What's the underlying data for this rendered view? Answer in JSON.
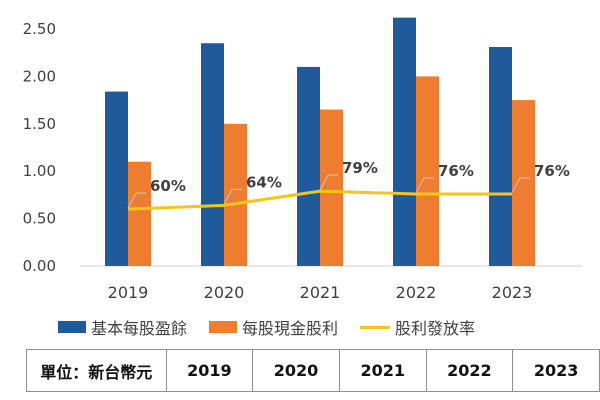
{
  "chart_data": {
    "type": "bar",
    "categories": [
      "2019",
      "2020",
      "2021",
      "2022",
      "2023"
    ],
    "series": [
      {
        "name": "基本每股盈餘",
        "type": "bar",
        "color": "#1f5b9a",
        "values": [
          1.84,
          2.35,
          2.1,
          2.62,
          2.31
        ]
      },
      {
        "name": "每股現金股利",
        "type": "bar",
        "color": "#ed7d31",
        "values": [
          1.1,
          1.5,
          1.65,
          2.0,
          1.75
        ]
      },
      {
        "name": "股利發放率",
        "type": "line",
        "color": "#f5c518",
        "values": [
          0.6,
          0.64,
          0.79,
          0.76,
          0.76
        ],
        "labels": [
          "60%",
          "64%",
          "79%",
          "76%",
          "76%"
        ]
      }
    ],
    "ylim": [
      0,
      2.5
    ],
    "yticks": [
      "0.00",
      "0.50",
      "1.00",
      "1.50",
      "2.00",
      "2.50"
    ],
    "grid": false,
    "legend_position": "bottom"
  },
  "table": {
    "unit_label": "單位：新台幣元",
    "years": [
      "2019",
      "2020",
      "2021",
      "2022",
      "2023"
    ]
  }
}
